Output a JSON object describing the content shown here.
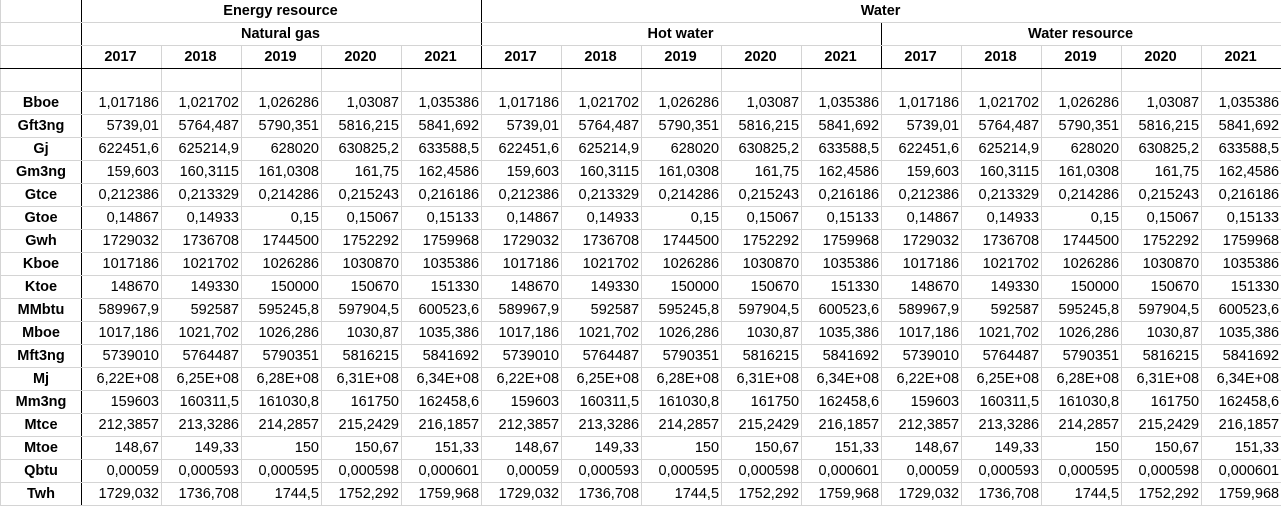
{
  "groups": {
    "energy": "Energy resource",
    "water": "Water"
  },
  "subgroups": {
    "natural_gas": "Natural gas",
    "hot_water": "Hot water",
    "water_resource": "Water resource"
  },
  "years": [
    "2017",
    "2018",
    "2019",
    "2020",
    "2021"
  ],
  "rows": [
    {
      "unit": "Bboe",
      "values": [
        "1,017186",
        "1,021702",
        "1,026286",
        "1,03087",
        "1,035386"
      ]
    },
    {
      "unit": "Gft3ng",
      "values": [
        "5739,01",
        "5764,487",
        "5790,351",
        "5816,215",
        "5841,692"
      ]
    },
    {
      "unit": "Gj",
      "values": [
        "622451,6",
        "625214,9",
        "628020",
        "630825,2",
        "633588,5"
      ]
    },
    {
      "unit": "Gm3ng",
      "values": [
        "159,603",
        "160,3115",
        "161,0308",
        "161,75",
        "162,4586"
      ]
    },
    {
      "unit": "Gtce",
      "values": [
        "0,212386",
        "0,213329",
        "0,214286",
        "0,215243",
        "0,216186"
      ]
    },
    {
      "unit": "Gtoe",
      "values": [
        "0,14867",
        "0,14933",
        "0,15",
        "0,15067",
        "0,15133"
      ]
    },
    {
      "unit": "Gwh",
      "values": [
        "1729032",
        "1736708",
        "1744500",
        "1752292",
        "1759968"
      ]
    },
    {
      "unit": "Kboe",
      "values": [
        "1017186",
        "1021702",
        "1026286",
        "1030870",
        "1035386"
      ]
    },
    {
      "unit": "Ktoe",
      "values": [
        "148670",
        "149330",
        "150000",
        "150670",
        "151330"
      ]
    },
    {
      "unit": "MMbtu",
      "values": [
        "589967,9",
        "592587",
        "595245,8",
        "597904,5",
        "600523,6"
      ]
    },
    {
      "unit": "Mboe",
      "values": [
        "1017,186",
        "1021,702",
        "1026,286",
        "1030,87",
        "1035,386"
      ]
    },
    {
      "unit": "Mft3ng",
      "values": [
        "5739010",
        "5764487",
        "5790351",
        "5816215",
        "5841692"
      ]
    },
    {
      "unit": "Mj",
      "values": [
        "6,22E+08",
        "6,25E+08",
        "6,28E+08",
        "6,31E+08",
        "6,34E+08"
      ]
    },
    {
      "unit": "Mm3ng",
      "values": [
        "159603",
        "160311,5",
        "161030,8",
        "161750",
        "162458,6"
      ]
    },
    {
      "unit": "Mtce",
      "values": [
        "212,3857",
        "213,3286",
        "214,2857",
        "215,2429",
        "216,1857"
      ]
    },
    {
      "unit": "Mtoe",
      "values": [
        "148,67",
        "149,33",
        "150",
        "150,67",
        "151,33"
      ]
    },
    {
      "unit": "Qbtu",
      "values": [
        "0,00059",
        "0,000593",
        "0,000595",
        "0,000598",
        "0,000601"
      ]
    },
    {
      "unit": "Twh",
      "values": [
        "1729,032",
        "1736,708",
        "1744,5",
        "1752,292",
        "1759,968"
      ]
    }
  ]
}
